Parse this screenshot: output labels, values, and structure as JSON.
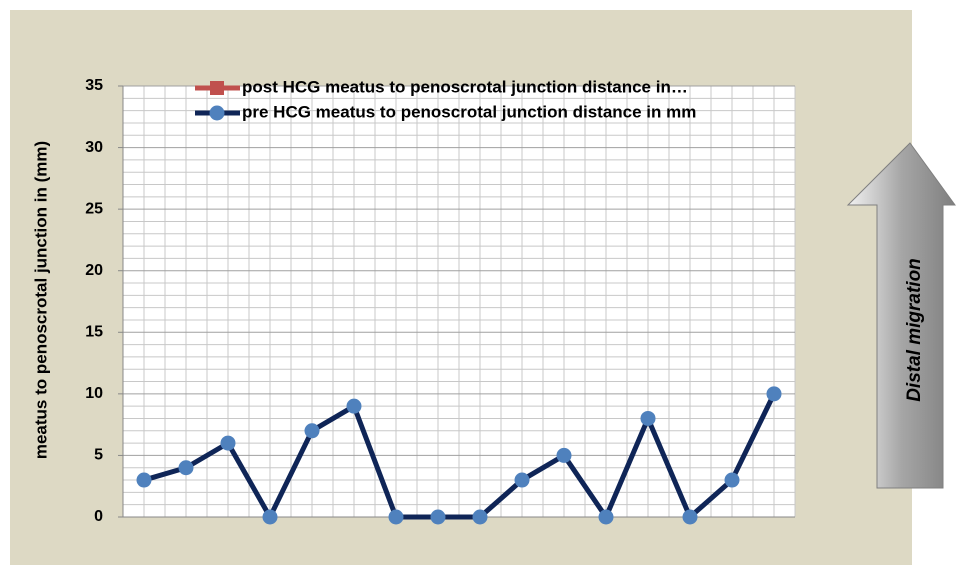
{
  "chart_data": {
    "type": "line",
    "ylabel": "meatus to penoscrotal junction in (mm)",
    "annotation": "Distal migration",
    "categories": [
      null,
      null,
      null,
      null,
      null,
      null,
      null,
      null,
      null,
      null,
      null,
      null,
      null,
      null,
      null,
      null
    ],
    "series": [
      {
        "name": "post HCG meatus to penoscrotal junction distance in…",
        "color": "#c0504d",
        "marker": "square",
        "values": [
          null,
          null,
          null,
          null,
          null,
          null,
          null,
          null,
          null,
          null,
          null,
          null,
          null,
          null,
          null,
          null
        ]
      },
      {
        "name": "pre HCG meatus to penoscrotal junction distance in mm",
        "color": "#0f2557",
        "marker": "circle",
        "marker_color": "#4f81bd",
        "values": [
          3,
          4,
          6,
          0,
          7,
          9,
          0,
          0,
          0,
          3,
          5,
          0,
          8,
          0,
          3,
          10
        ]
      }
    ],
    "ylim": [
      0,
      35
    ],
    "yticks": [
      0,
      5,
      10,
      15,
      20,
      25,
      30,
      35
    ],
    "grid": true,
    "legend": "top"
  }
}
